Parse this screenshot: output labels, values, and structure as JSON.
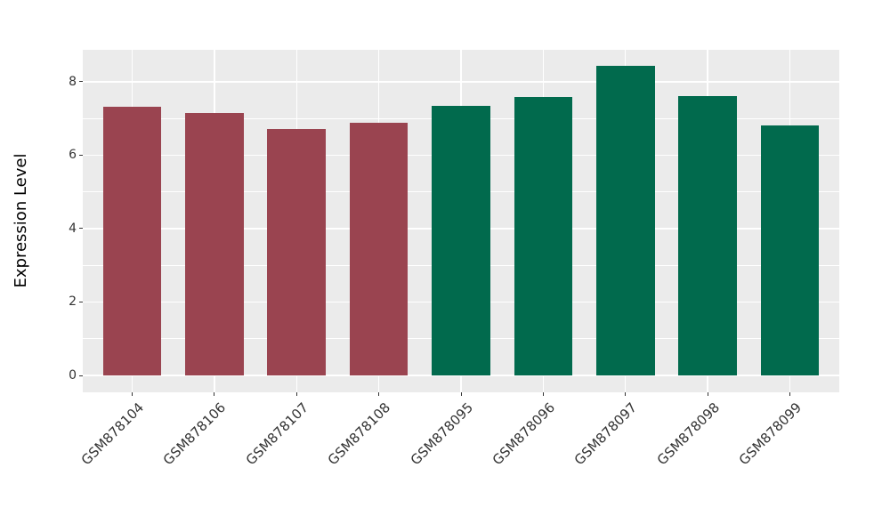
{
  "chart_data": {
    "type": "bar",
    "title": "",
    "xlabel": "",
    "ylabel": "Expression Level",
    "categories": [
      "GSM878104",
      "GSM878106",
      "GSM878107",
      "GSM878108",
      "GSM878095",
      "GSM878096",
      "GSM878097",
      "GSM878098",
      "GSM878099"
    ],
    "values": [
      7.32,
      7.16,
      6.72,
      6.88,
      7.34,
      7.58,
      8.44,
      7.61,
      6.81
    ],
    "bar_colors": [
      "#9A4450",
      "#9A4450",
      "#9A4450",
      "#9A4450",
      "#016A4D",
      "#016A4D",
      "#016A4D",
      "#016A4D",
      "#016A4D"
    ],
    "group_colors": {
      "left_group": "#9A4450",
      "right_group": "#016A4D"
    },
    "yticks": [
      0,
      2,
      4,
      6,
      8
    ],
    "yticks_minor": [
      1,
      3,
      5,
      7
    ],
    "ylim": [
      -0.46,
      8.87
    ],
    "bar_width_fraction": 0.71,
    "x_label_rotation_deg": 45,
    "grid": true,
    "legend": "none",
    "background": "#FFFFFF",
    "panel_background": "#EBEBEB",
    "grid_color": "#FFFFFF",
    "tick_label_color": "#333333",
    "axis_title_color": "#000000"
  }
}
